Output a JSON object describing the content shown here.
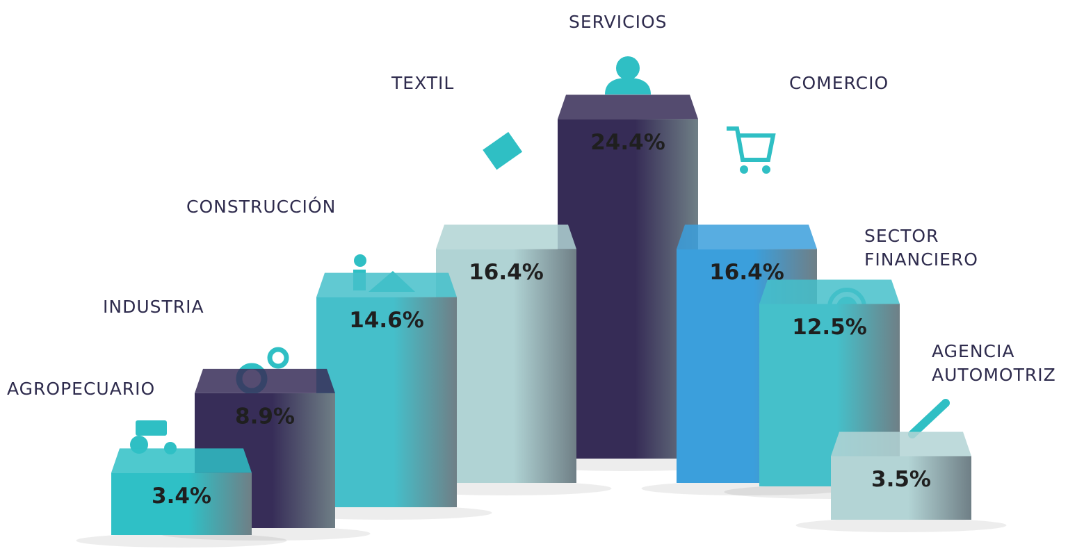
{
  "chart_data": {
    "type": "bar",
    "categories": [
      "AGROPECUARIO",
      "INDUSTRIA",
      "CONSTRUCCIÓN",
      "TEXTIL",
      "SERVICIOS",
      "COMERCIO",
      "SECTOR FINANCIERO",
      "AGENCIA AUTOMOTRIZ"
    ],
    "values": [
      3.4,
      8.9,
      14.6,
      16.4,
      24.4,
      16.4,
      12.5,
      3.5
    ],
    "value_labels": [
      "3.4%",
      "8.9%",
      "14.6%",
      "16.4%",
      "24.4%",
      "16.4%",
      "12.5%",
      "3.5%"
    ],
    "colors": [
      "#2fc0c6",
      "#372d58",
      "#45bfca",
      "#b0d3d4",
      "#362c56",
      "#3b9fdc",
      "#45c0ca",
      "#b3d4d5"
    ]
  }
}
